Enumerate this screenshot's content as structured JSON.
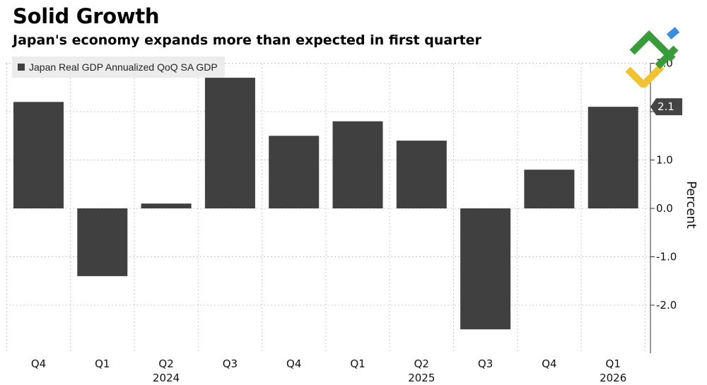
{
  "header": {
    "title": "Solid Growth",
    "subtitle": "Japan's economy expands more than expected in first quarter"
  },
  "legend": {
    "label": "Japan Real GDP Annualized QoQ SA GDP"
  },
  "colors": {
    "bar": "#404040",
    "grid": "#c8c8c8",
    "callout": "#444444",
    "logo_green": "#3a9b3a",
    "logo_yellow": "#f2c230",
    "logo_blue": "#3a8fd8"
  },
  "chart_data": {
    "type": "bar",
    "categories": [
      "Q4",
      "Q1",
      "Q2",
      "Q3",
      "Q4",
      "Q1",
      "Q2",
      "Q3",
      "Q4",
      "Q1"
    ],
    "year_labels": [
      {
        "label": "2024",
        "category_index": 2
      },
      {
        "label": "2025",
        "category_index": 6
      },
      {
        "label": "2026",
        "category_index": 9
      }
    ],
    "series": [
      {
        "name": "Japan Real GDP Annualized QoQ SA GDP",
        "values": [
          2.2,
          -1.4,
          0.1,
          2.7,
          1.5,
          1.8,
          1.4,
          -2.5,
          0.8,
          2.1
        ]
      }
    ],
    "ylabel": "Percent",
    "ylim": [
      -3.0,
      3.0
    ],
    "yticks": [
      3.0,
      2.0,
      1.0,
      0.0,
      -1.0,
      -2.0
    ],
    "ytick_labels": [
      "3.0",
      "2.0",
      "1.0",
      "0.0",
      "-1.0",
      "-2.0"
    ],
    "callout": {
      "label": "2.1",
      "value": 2.1
    },
    "grid": true
  }
}
